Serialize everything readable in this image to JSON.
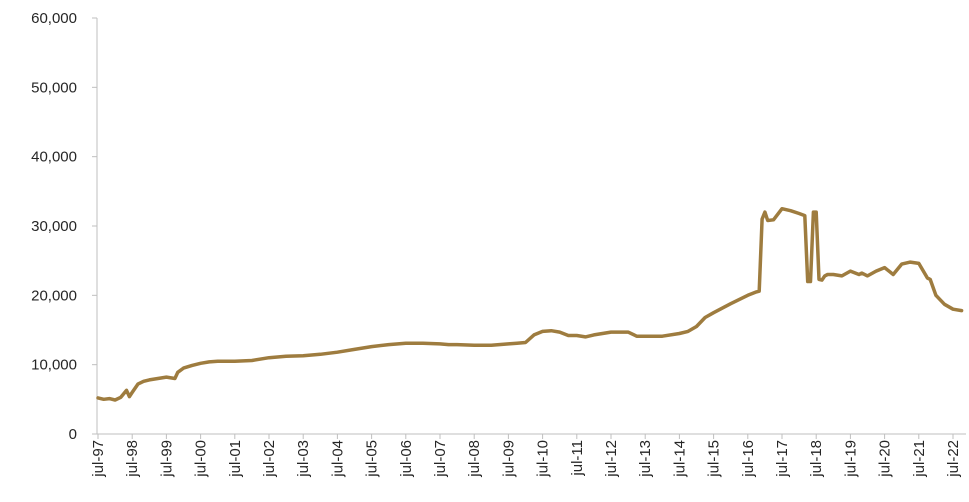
{
  "chart_data": {
    "type": "line",
    "title": "",
    "xlabel": "",
    "ylabel": "",
    "ylim": [
      0,
      60000
    ],
    "yticks": [
      0,
      10000,
      20000,
      30000,
      40000,
      50000,
      60000
    ],
    "ytick_labels": [
      "0",
      "10,000",
      "20,000",
      "30,000",
      "40,000",
      "50,000",
      "60,000"
    ],
    "xtick_labels": [
      "jul-97",
      "jul-98",
      "jul-99",
      "jul-00",
      "jul-01",
      "jul-02",
      "jul-03",
      "jul-04",
      "jul-05",
      "jul-06",
      "jul-07",
      "jul-08",
      "jul-09",
      "jul-10",
      "jul-11",
      "jul-12",
      "jul-13",
      "jul-14",
      "jul-15",
      "jul-16",
      "jul-17",
      "jul-18",
      "jul-19",
      "jul-20",
      "jul-21",
      "jul-22"
    ],
    "grid": false,
    "legend": "none",
    "line_color": "#9e7c3f",
    "series": [
      {
        "x": [
          "1997-07",
          "1997-09",
          "1997-11",
          "1998-01",
          "1998-03",
          "1998-04",
          "1998-05",
          "1998-06",
          "1998-07",
          "1998-09",
          "1998-11",
          "1999-01",
          "1999-04",
          "1999-07",
          "1999-10",
          "1999-11",
          "2000-01",
          "2000-04",
          "2000-07",
          "2000-10",
          "2001-01",
          "2001-07",
          "2002-01",
          "2002-07",
          "2003-01",
          "2003-07",
          "2004-01",
          "2004-07",
          "2005-01",
          "2005-07",
          "2006-01",
          "2006-07",
          "2007-01",
          "2007-07",
          "2007-10",
          "2008-01",
          "2008-07",
          "2009-01",
          "2009-07",
          "2009-10",
          "2010-01",
          "2010-04",
          "2010-07",
          "2010-10",
          "2011-01",
          "2011-04",
          "2011-07",
          "2011-10",
          "2012-01",
          "2012-07",
          "2013-01",
          "2013-04",
          "2013-07",
          "2014-01",
          "2014-07",
          "2014-10",
          "2015-01",
          "2015-04",
          "2015-07",
          "2016-01",
          "2016-07",
          "2016-10",
          "2016-11",
          "2016-12",
          "2017-01",
          "2017-02",
          "2017-04",
          "2017-07",
          "2017-10",
          "2018-01",
          "2018-03",
          "2018-04",
          "2018-05",
          "2018-06",
          "2018-07",
          "2018-08",
          "2018-09",
          "2018-10",
          "2018-11",
          "2019-01",
          "2019-04",
          "2019-07",
          "2019-10",
          "2019-11",
          "2020-01",
          "2020-04",
          "2020-07",
          "2020-10",
          "2021-01",
          "2021-04",
          "2021-07",
          "2021-10",
          "2021-11",
          "2022-01",
          "2022-04",
          "2022-07",
          "2022-10"
        ],
        "values": [
          5200,
          5000,
          5100,
          4900,
          5300,
          5800,
          6300,
          5400,
          6000,
          7200,
          7600,
          7800,
          8000,
          8200,
          8000,
          8900,
          9500,
          9900,
          10200,
          10400,
          10500,
          10500,
          10600,
          11000,
          11200,
          11300,
          11500,
          11800,
          12200,
          12600,
          12900,
          13100,
          13100,
          13000,
          12900,
          12900,
          12800,
          12800,
          13000,
          13100,
          13200,
          14300,
          14800,
          14900,
          14700,
          14200,
          14200,
          14000,
          14300,
          14700,
          14700,
          14100,
          14100,
          14100,
          14500,
          14800,
          15500,
          16800,
          17500,
          18800,
          20000,
          20500,
          20600,
          31000,
          32000,
          30800,
          30900,
          32500,
          32200,
          31800,
          31500,
          22000,
          22000,
          32000,
          32000,
          22300,
          22200,
          22800,
          23000,
          23000,
          22800,
          23500,
          23000,
          23200,
          22800,
          23500,
          24000,
          23000,
          24500,
          24800,
          24600,
          22500,
          22300,
          20000,
          18700,
          18000,
          17800
        ]
      }
    ]
  }
}
